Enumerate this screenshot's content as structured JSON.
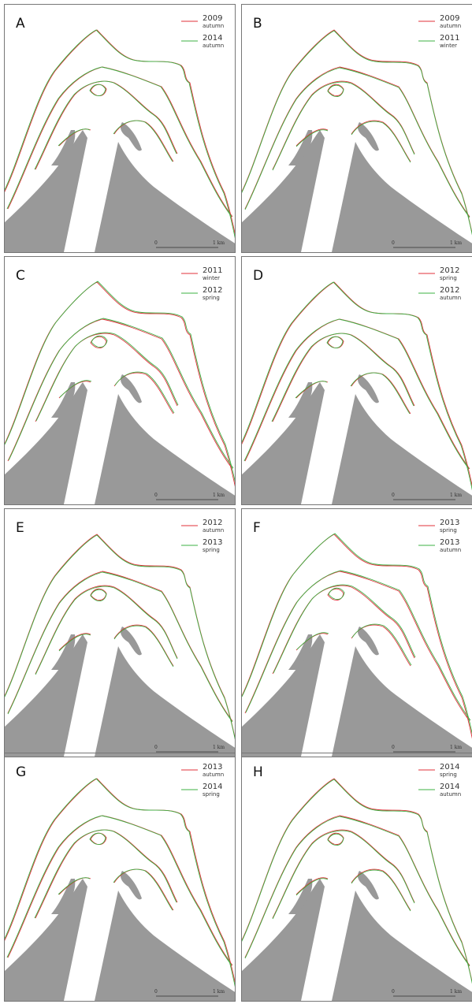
{
  "panels": [
    {
      "label": "A",
      "legend": [
        {
          "year": "2009",
          "season": "autumn"
        },
        {
          "year": "2014",
          "season": "autumn"
        }
      ],
      "scale_start": "0",
      "scale_end": "1 km"
    },
    {
      "label": "B",
      "legend": [
        {
          "year": "2009",
          "season": "autumn"
        },
        {
          "year": "2011",
          "season": "winter"
        }
      ],
      "scale_start": "0",
      "scale_end": "1 km"
    },
    {
      "label": "C",
      "legend": [
        {
          "year": "2011",
          "season": "winter"
        },
        {
          "year": "2012",
          "season": "spring"
        }
      ],
      "scale_start": "0",
      "scale_end": "1 km"
    },
    {
      "label": "D",
      "legend": [
        {
          "year": "2012",
          "season": "spring"
        },
        {
          "year": "2012",
          "season": "autumn"
        }
      ],
      "scale_start": "0",
      "scale_end": "1 km"
    },
    {
      "label": "E",
      "legend": [
        {
          "year": "2012",
          "season": "autumn"
        },
        {
          "year": "2013",
          "season": "spring"
        }
      ],
      "scale_start": "0",
      "scale_end": "1 km"
    },
    {
      "label": "F",
      "legend": [
        {
          "year": "2013",
          "season": "spring"
        },
        {
          "year": "2013",
          "season": "autumn"
        }
      ],
      "scale_start": "0",
      "scale_end": "1 km"
    },
    {
      "label": "G",
      "legend": [
        {
          "year": "2013",
          "season": "autumn"
        },
        {
          "year": "2014",
          "season": "spring"
        }
      ],
      "scale_start": "0",
      "scale_end": "1 km"
    },
    {
      "label": "H",
      "legend": [
        {
          "year": "2014",
          "season": "spring"
        },
        {
          "year": "2014",
          "season": "autumn"
        }
      ],
      "scale_start": "0",
      "scale_end": "1 km"
    }
  ]
}
